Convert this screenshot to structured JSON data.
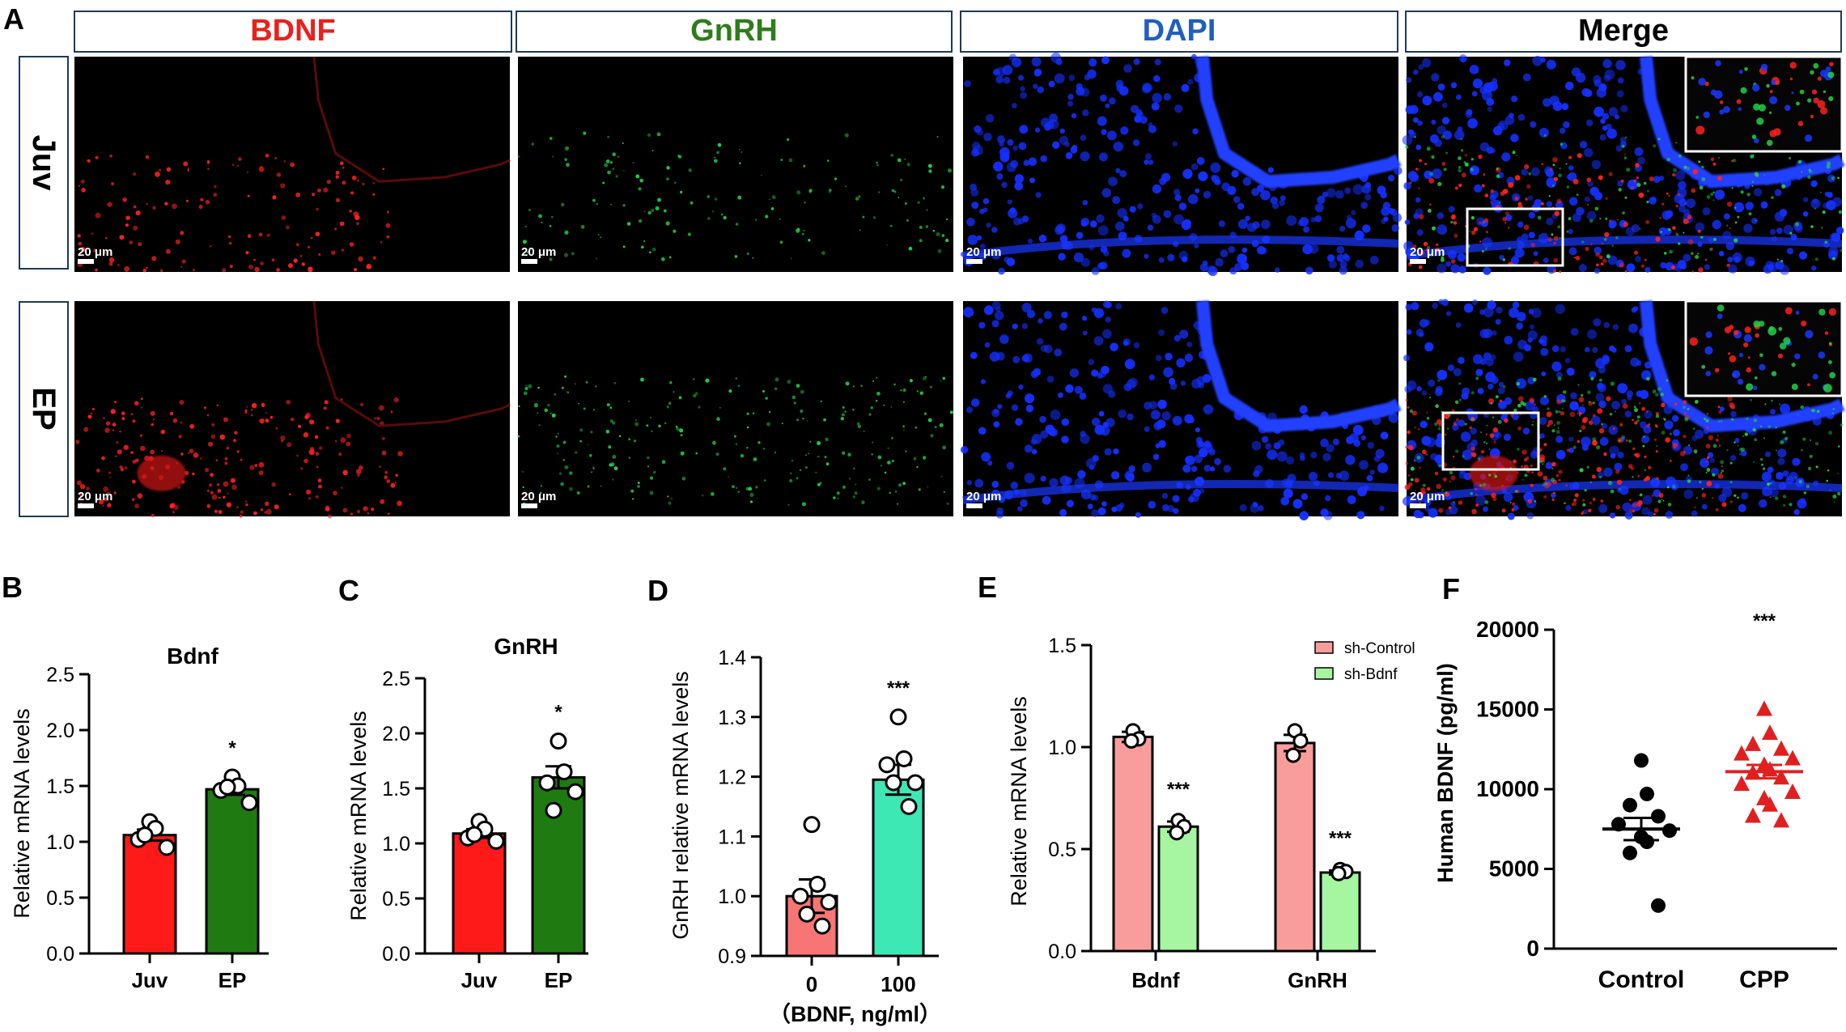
{
  "panel_letters": [
    "A",
    "B",
    "C",
    "D",
    "E",
    "F"
  ],
  "panelA": {
    "channels": [
      {
        "label": "BDNF",
        "color": "#e8211c",
        "kind": "red"
      },
      {
        "label": "GnRH",
        "color": "#2e7d1a",
        "kind": "green"
      },
      {
        "label": "DAPI",
        "color": "#1f5fc0",
        "kind": "blue"
      },
      {
        "label": "Merge",
        "color": "#000000",
        "kind": "merge"
      }
    ],
    "rows": [
      "Juv",
      "EP"
    ],
    "scale_bar": "20 μm"
  },
  "chart_data": [
    {
      "id": "B",
      "type": "bar",
      "title": "Bdnf",
      "ylabel": "Relative mRNA levels",
      "xlabel": "",
      "ylim": [
        0,
        2.5
      ],
      "yticks": [
        "0.0",
        "0.5",
        "1.0",
        "1.5",
        "2.0",
        "2.5"
      ],
      "categories": [
        "Juv",
        "EP"
      ],
      "values": [
        1.06,
        1.47
      ],
      "sem": [
        0.05,
        0.05
      ],
      "colors": [
        "#ff1a1a",
        "#1f7a12"
      ],
      "points": [
        [
          1.18,
          1.12,
          1.02,
          0.95,
          1.06
        ],
        [
          1.58,
          1.5,
          1.46,
          1.35,
          1.49
        ]
      ],
      "significance": [
        "",
        "*"
      ]
    },
    {
      "id": "C",
      "type": "bar",
      "title": "GnRH",
      "ylabel": "Relative mRNA levels",
      "xlabel": "",
      "ylim": [
        0,
        2.5
      ],
      "yticks": [
        "0.0",
        "0.5",
        "1.0",
        "1.5",
        "2.0",
        "2.5"
      ],
      "categories": [
        "Juv",
        "EP"
      ],
      "values": [
        1.09,
        1.6
      ],
      "sem": [
        0.04,
        0.1
      ],
      "colors": [
        "#ff1a1a",
        "#1f7a12"
      ],
      "points": [
        [
          1.2,
          1.13,
          1.05,
          1.02,
          1.08
        ],
        [
          1.93,
          1.65,
          1.55,
          1.47,
          1.3
        ]
      ],
      "significance": [
        "",
        "*"
      ]
    },
    {
      "id": "D",
      "type": "bar",
      "title": "",
      "ylabel": "GnRH relative mRNA levels",
      "xlabel": "（BDNF, ng/ml）",
      "ylim": [
        0.9,
        1.4
      ],
      "yticks": [
        "0.9",
        "1.0",
        "1.1",
        "1.2",
        "1.3",
        "1.4"
      ],
      "categories": [
        "0",
        "100"
      ],
      "values": [
        1.0,
        1.195
      ],
      "sem": [
        0.028,
        0.025
      ],
      "colors": [
        "#f87575",
        "#3de8b4"
      ],
      "points": [
        [
          1.12,
          1.02,
          1.0,
          0.99,
          0.97,
          0.95
        ],
        [
          1.3,
          1.23,
          1.22,
          1.19,
          1.19,
          1.15
        ]
      ],
      "significance": [
        "",
        "***"
      ]
    },
    {
      "id": "E",
      "type": "bar",
      "title": "",
      "ylabel": "Relative mRNA levels",
      "xlabel": "",
      "ylim": [
        0,
        1.5
      ],
      "yticks": [
        "0.0",
        "0.5",
        "1.0",
        "1.5"
      ],
      "categories": [
        "Bdnf",
        "GnRH"
      ],
      "series": [
        {
          "name": "sh-Control",
          "color": "#f99c9c",
          "values": [
            1.05,
            1.02
          ],
          "sem": [
            0.025,
            0.04
          ],
          "points": [
            [
              1.08,
              1.04,
              1.03
            ],
            [
              1.08,
              1.03,
              0.96
            ]
          ]
        },
        {
          "name": "sh-Bdnf",
          "color": "#a6f5a1",
          "values": [
            0.61,
            0.385
          ],
          "sem": [
            0.025,
            0.01
          ],
          "points": [
            [
              0.64,
              0.61,
              0.58
            ],
            [
              0.4,
              0.39,
              0.38
            ]
          ]
        }
      ],
      "significance": [
        [
          "",
          "***"
        ],
        [
          "",
          "***"
        ]
      ],
      "legend_position": "top-right"
    },
    {
      "id": "F",
      "type": "scatter",
      "title": "",
      "ylabel": "Human BDNF (pg/ml)",
      "xlabel": "",
      "ylim": [
        0,
        20000
      ],
      "yticks": [
        "0",
        "5000",
        "10000",
        "15000",
        "20000"
      ],
      "categories": [
        "Control",
        "CPP"
      ],
      "values": [
        7500,
        11100
      ],
      "sem": [
        700,
        420
      ],
      "colors": [
        "#000000",
        "#e02020"
      ],
      "markers": [
        "circle",
        "triangle"
      ],
      "points": [
        [
          11800,
          9700,
          9000,
          8300,
          7800,
          7400,
          7000,
          6700,
          6000,
          2700
        ],
        [
          15000,
          13500,
          12800,
          12500,
          12200,
          11900,
          11500,
          11200,
          11000,
          10700,
          10300,
          9800,
          9400,
          9000,
          8300,
          8000
        ]
      ],
      "significance": [
        "",
        "***"
      ]
    }
  ]
}
